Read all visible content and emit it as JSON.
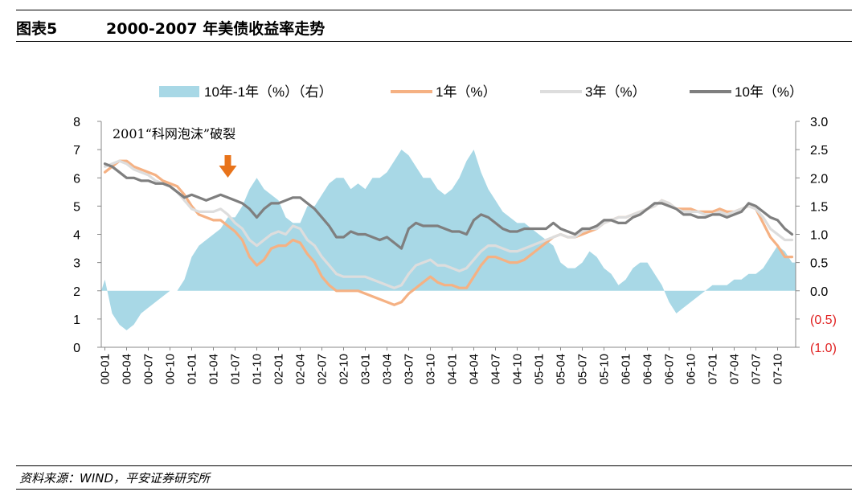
{
  "figure": {
    "number": "图表5",
    "title": "2000-2007 年美债收益率走势",
    "source": "资料来源：WIND，平安证券研究所"
  },
  "chart_data": {
    "type": "line",
    "subtype": "area-bar + line combo, dual y-axis",
    "x_tick_labels": [
      "00-01",
      "00-04",
      "00-07",
      "00-10",
      "01-01",
      "01-04",
      "01-07",
      "01-10",
      "02-01",
      "02-04",
      "02-07",
      "02-10",
      "03-01",
      "03-04",
      "03-07",
      "03-10",
      "04-01",
      "04-04",
      "04-07",
      "04-10",
      "05-01",
      "05-04",
      "05-07",
      "05-10",
      "06-01",
      "06-04",
      "06-07",
      "06-10",
      "07-01",
      "07-04",
      "07-07",
      "07-10"
    ],
    "x": [
      "00-01",
      "00-02",
      "00-03",
      "00-04",
      "00-05",
      "00-06",
      "00-07",
      "00-08",
      "00-09",
      "00-10",
      "00-11",
      "00-12",
      "01-01",
      "01-02",
      "01-03",
      "01-04",
      "01-05",
      "01-06",
      "01-07",
      "01-08",
      "01-09",
      "01-10",
      "01-11",
      "01-12",
      "02-01",
      "02-02",
      "02-03",
      "02-04",
      "02-05",
      "02-06",
      "02-07",
      "02-08",
      "02-09",
      "02-10",
      "02-11",
      "02-12",
      "03-01",
      "03-02",
      "03-03",
      "03-04",
      "03-05",
      "03-06",
      "03-07",
      "03-08",
      "03-09",
      "03-10",
      "03-11",
      "03-12",
      "04-01",
      "04-02",
      "04-03",
      "04-04",
      "04-05",
      "04-06",
      "04-07",
      "04-08",
      "04-09",
      "04-10",
      "04-11",
      "04-12",
      "05-01",
      "05-02",
      "05-03",
      "05-04",
      "05-05",
      "05-06",
      "05-07",
      "05-08",
      "05-09",
      "05-10",
      "05-11",
      "05-12",
      "06-01",
      "06-02",
      "06-03",
      "06-04",
      "06-05",
      "06-06",
      "06-07",
      "06-08",
      "06-09",
      "06-10",
      "06-11",
      "06-12",
      "07-01",
      "07-02",
      "07-03",
      "07-04",
      "07-05",
      "07-06",
      "07-07",
      "07-08",
      "07-09",
      "07-10",
      "07-11",
      "07-12"
    ],
    "y_left": {
      "ticks": [
        "0",
        "1",
        "2",
        "3",
        "4",
        "5",
        "6",
        "7",
        "8"
      ],
      "ylim": [
        0,
        8
      ]
    },
    "y_right": {
      "ticks": [
        "3.0",
        "2.5",
        "2.0",
        "1.5",
        "1.0",
        "0.5",
        "0.0",
        "(0.5)",
        "(1.0)"
      ],
      "ylim": [
        -1.0,
        3.0
      ],
      "negative_color": "#e02020"
    },
    "series": [
      {
        "name": "10年-1年（%）（右）",
        "kind": "area",
        "axis": "right",
        "color": "#a8d8e6",
        "values": [
          0.2,
          -0.4,
          -0.6,
          -0.7,
          -0.6,
          -0.4,
          -0.3,
          -0.2,
          -0.1,
          0.0,
          0.0,
          0.2,
          0.6,
          0.8,
          0.9,
          1.0,
          1.1,
          1.3,
          1.3,
          1.5,
          1.8,
          2.0,
          1.8,
          1.7,
          1.6,
          1.3,
          1.2,
          1.2,
          1.5,
          1.5,
          1.7,
          1.9,
          2.0,
          2.0,
          1.8,
          1.9,
          1.8,
          2.0,
          2.0,
          2.1,
          2.3,
          2.5,
          2.4,
          2.2,
          2.0,
          2.0,
          1.8,
          1.7,
          1.8,
          2.0,
          2.3,
          2.5,
          2.1,
          1.8,
          1.6,
          1.4,
          1.3,
          1.2,
          1.2,
          1.1,
          1.0,
          0.9,
          0.8,
          0.5,
          0.4,
          0.4,
          0.5,
          0.7,
          0.6,
          0.4,
          0.3,
          0.1,
          0.2,
          0.4,
          0.5,
          0.5,
          0.3,
          0.1,
          -0.2,
          -0.4,
          -0.3,
          -0.2,
          -0.1,
          0.0,
          0.1,
          0.1,
          0.1,
          0.2,
          0.2,
          0.3,
          0.3,
          0.4,
          0.6,
          0.8,
          0.7,
          0.5
        ]
      },
      {
        "name": "1年（%）",
        "kind": "line",
        "axis": "left",
        "color": "#f5b183",
        "values": [
          6.2,
          6.4,
          6.6,
          6.6,
          6.4,
          6.3,
          6.2,
          6.1,
          5.9,
          5.8,
          5.7,
          5.4,
          5.0,
          4.7,
          4.6,
          4.5,
          4.5,
          4.3,
          4.1,
          3.8,
          3.2,
          2.9,
          3.1,
          3.5,
          3.6,
          3.6,
          3.8,
          3.7,
          3.3,
          3.0,
          2.5,
          2.2,
          2.0,
          2.0,
          2.0,
          2.0,
          1.9,
          1.8,
          1.7,
          1.6,
          1.5,
          1.6,
          1.9,
          2.1,
          2.3,
          2.5,
          2.3,
          2.2,
          2.2,
          2.1,
          2.1,
          2.5,
          2.9,
          3.2,
          3.2,
          3.1,
          3.0,
          3.0,
          3.1,
          3.3,
          3.5,
          3.7,
          3.9,
          4.0,
          3.9,
          3.9,
          4.0,
          4.1,
          4.2,
          4.4,
          4.5,
          4.6,
          4.6,
          4.7,
          4.8,
          4.9,
          5.0,
          5.2,
          5.1,
          4.9,
          4.9,
          4.9,
          4.8,
          4.8,
          4.8,
          4.9,
          4.8,
          4.8,
          4.9,
          5.0,
          4.9,
          4.4,
          3.9,
          3.6,
          3.2,
          3.2
        ]
      },
      {
        "name": "3年（%）",
        "kind": "line",
        "axis": "left",
        "color": "#dddddd",
        "values": [
          6.4,
          6.5,
          6.6,
          6.5,
          6.3,
          6.2,
          6.1,
          5.9,
          5.8,
          5.7,
          5.5,
          5.2,
          4.9,
          4.8,
          4.8,
          4.8,
          4.9,
          4.7,
          4.4,
          4.2,
          3.8,
          3.6,
          3.8,
          4.0,
          4.1,
          4.0,
          4.3,
          4.2,
          3.8,
          3.6,
          3.2,
          2.9,
          2.6,
          2.5,
          2.5,
          2.5,
          2.5,
          2.4,
          2.3,
          2.2,
          2.1,
          2.2,
          2.6,
          2.9,
          3.0,
          3.1,
          2.9,
          2.9,
          2.8,
          2.7,
          2.8,
          3.1,
          3.4,
          3.6,
          3.6,
          3.5,
          3.4,
          3.4,
          3.5,
          3.6,
          3.7,
          3.8,
          3.9,
          4.0,
          3.9,
          3.9,
          4.1,
          4.2,
          4.2,
          4.4,
          4.5,
          4.6,
          4.6,
          4.7,
          4.8,
          4.9,
          5.0,
          5.2,
          5.1,
          4.9,
          4.8,
          4.8,
          4.8,
          4.7,
          4.7,
          4.8,
          4.7,
          4.8,
          4.9,
          5.0,
          4.9,
          4.6,
          4.2,
          4.0,
          3.8,
          3.8
        ]
      },
      {
        "name": "10年（%）",
        "kind": "line",
        "axis": "left",
        "color": "#7f7f7f",
        "values": [
          6.5,
          6.4,
          6.2,
          6.0,
          6.0,
          5.9,
          5.9,
          5.8,
          5.8,
          5.7,
          5.5,
          5.3,
          5.4,
          5.3,
          5.2,
          5.3,
          5.4,
          5.3,
          5.2,
          5.1,
          4.9,
          4.6,
          4.9,
          5.1,
          5.1,
          5.2,
          5.3,
          5.3,
          5.1,
          4.9,
          4.6,
          4.3,
          3.9,
          3.9,
          4.1,
          4.0,
          4.0,
          3.9,
          3.8,
          3.9,
          3.7,
          3.5,
          4.2,
          4.4,
          4.3,
          4.3,
          4.3,
          4.2,
          4.1,
          4.1,
          4.0,
          4.5,
          4.7,
          4.6,
          4.4,
          4.2,
          4.1,
          4.1,
          4.2,
          4.2,
          4.2,
          4.2,
          4.4,
          4.2,
          4.1,
          4.0,
          4.2,
          4.2,
          4.3,
          4.5,
          4.5,
          4.4,
          4.4,
          4.6,
          4.7,
          4.9,
          5.1,
          5.1,
          5.0,
          4.9,
          4.7,
          4.7,
          4.6,
          4.6,
          4.7,
          4.7,
          4.6,
          4.7,
          4.8,
          5.1,
          5.0,
          4.8,
          4.6,
          4.5,
          4.2,
          4.0
        ]
      }
    ],
    "legend_position": "top",
    "annotation": {
      "text": "2001“科网泡沫”破裂",
      "arrow_color": "#e8731a",
      "arrow_x": "01-06"
    }
  }
}
